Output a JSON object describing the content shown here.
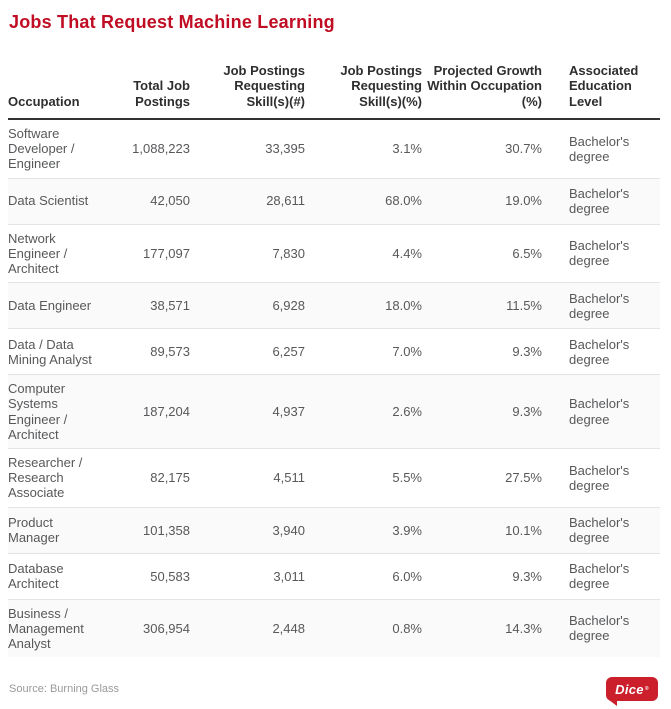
{
  "title": "Jobs That Request Machine Learning",
  "colors": {
    "title_red": "#c00d23",
    "dice_red": "#cb1f2c"
  },
  "chart_data": {
    "type": "table",
    "title": "Jobs That Request Machine Learning",
    "columns": [
      "Occupation",
      "Total Job Postings",
      "Job Postings Requesting Skill(s)(#)",
      "Job Postings Requesting Skill(s)(%)",
      "Projected Growth Within Occupation (%)",
      "Associated Education Level"
    ],
    "rows": [
      [
        "Software Developer / Engineer",
        "1,088,223",
        "33,395",
        "3.1%",
        "30.7%",
        "Bachelor's degree"
      ],
      [
        "Data Scientist",
        "42,050",
        "28,611",
        "68.0%",
        "19.0%",
        "Bachelor's degree"
      ],
      [
        "Network Engineer / Architect",
        "177,097",
        "7,830",
        "4.4%",
        "6.5%",
        "Bachelor's degree"
      ],
      [
        "Data Engineer",
        "38,571",
        "6,928",
        "18.0%",
        "11.5%",
        "Bachelor's degree"
      ],
      [
        "Data / Data Mining Analyst",
        "89,573",
        "6,257",
        "7.0%",
        "9.3%",
        "Bachelor's degree"
      ],
      [
        "Computer Systems Engineer / Architect",
        "187,204",
        "4,937",
        "2.6%",
        "9.3%",
        "Bachelor's degree"
      ],
      [
        "Researcher / Research Associate",
        "82,175",
        "4,511",
        "5.5%",
        "27.5%",
        "Bachelor's degree"
      ],
      [
        "Product Manager",
        "101,358",
        "3,940",
        "3.9%",
        "10.1%",
        "Bachelor's degree"
      ],
      [
        "Database Architect",
        "50,583",
        "3,011",
        "6.0%",
        "9.3%",
        "Bachelor's degree"
      ],
      [
        "Business / Management Analyst",
        "306,954",
        "2,448",
        "0.8%",
        "14.3%",
        "Bachelor's degree"
      ]
    ]
  },
  "footer": {
    "source": "Source: Burning Glass",
    "logo_text": "Dice",
    "logo_reg_mark": "®"
  }
}
